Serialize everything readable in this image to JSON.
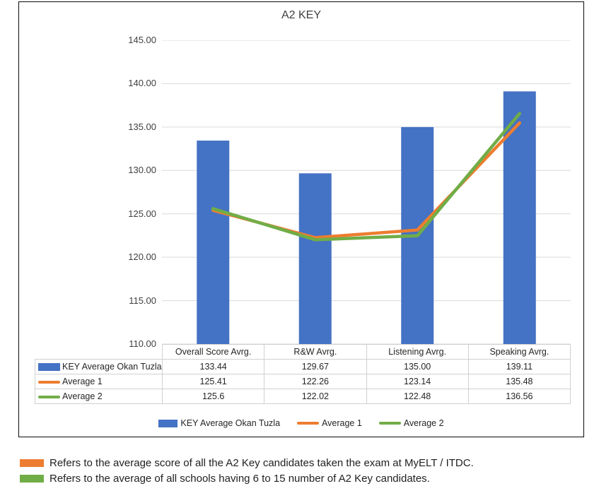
{
  "chart_data": {
    "type": "combo-bar-line",
    "title": "A2 KEY",
    "categories": [
      "Overall Score Avrg.",
      "R&W Avrg.",
      "Listening Avrg.",
      "Speaking Avrg."
    ],
    "series": [
      {
        "name": "KEY Average Okan Tuzla",
        "type": "bar",
        "color": "#4472C4",
        "values": [
          133.44,
          129.67,
          135.0,
          139.11
        ]
      },
      {
        "name": "Average 1",
        "type": "line",
        "color": "#ED7D31",
        "values": [
          125.41,
          122.26,
          123.14,
          135.48
        ]
      },
      {
        "name": "Average 2",
        "type": "line",
        "color": "#70AD47",
        "values": [
          125.6,
          122.02,
          122.48,
          136.56
        ]
      }
    ],
    "ylim": [
      110,
      145
    ],
    "ytick_step": 5,
    "ytick_labels": [
      "145.00",
      "140.00",
      "135.00",
      "130.00",
      "125.00",
      "120.00",
      "115.00",
      "110.00"
    ],
    "grid": true,
    "gridline_color": "#D9D9D9",
    "legend_position": "bottom",
    "data_table_shown": true
  },
  "table": {
    "columns": [
      "Overall Score Avrg.",
      "R&W Avrg.",
      "Listening Avrg.",
      "Speaking Avrg."
    ],
    "rows": [
      {
        "label": "KEY Average Okan Tuzla",
        "values": [
          "133.44",
          "129.67",
          "135.00",
          "139.11"
        ]
      },
      {
        "label": "Average 1",
        "values": [
          "125.41",
          "122.26",
          "123.14",
          "135.48"
        ]
      },
      {
        "label": "Average 2",
        "values": [
          "125.6",
          "122.02",
          "122.48",
          "136.56"
        ]
      }
    ]
  },
  "legend": {
    "items": [
      {
        "label": "KEY Average Okan Tuzla"
      },
      {
        "label": "Average 1"
      },
      {
        "label": "Average 2"
      }
    ]
  },
  "annotations": [
    {
      "color": "#ED7D31",
      "text": "Refers to the average score of all the A2 Key candidates taken the exam at MyELT / ITDC."
    },
    {
      "color": "#70AD47",
      "text": "Refers to the average of all schools having 6 to 15 number of A2 Key candidates."
    }
  ]
}
